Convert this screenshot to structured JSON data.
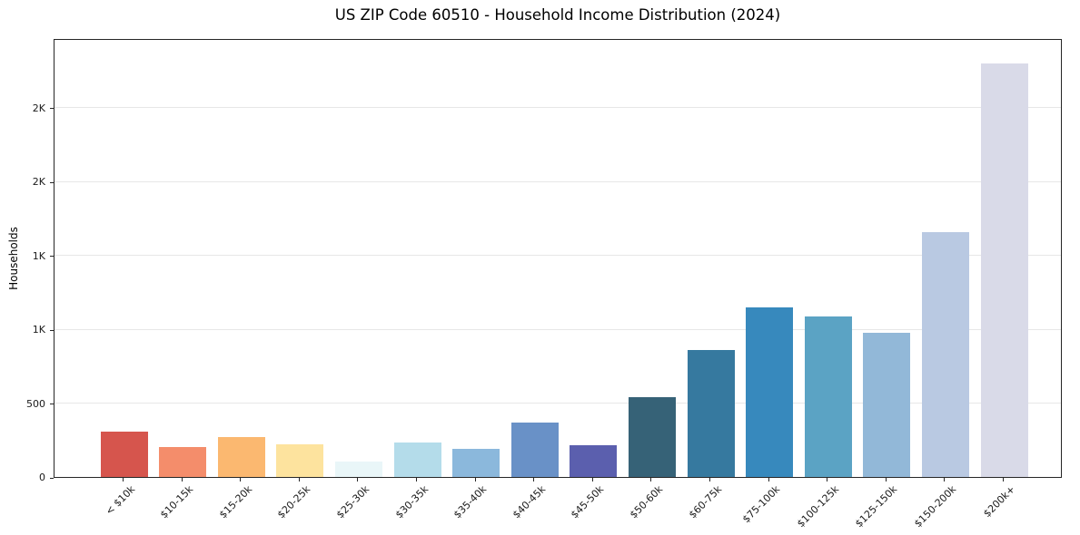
{
  "chart_data": {
    "type": "bar",
    "title": "US ZIP Code 60510 - Household Income Distribution (2024)",
    "xlabel": "",
    "ylabel": "Households",
    "categories": [
      "< $10k",
      "$10-15k",
      "$15-20k",
      "$20-25k",
      "$25-30k",
      "$30-35k",
      "$35-40k",
      "$40-45k",
      "$45-50k",
      "$50-60k",
      "$60-75k",
      "$75-100k",
      "$100-125k",
      "$125-150k",
      "$150-200k",
      "$200k+"
    ],
    "values": [
      310,
      200,
      270,
      220,
      105,
      235,
      190,
      370,
      215,
      540,
      860,
      1150,
      1085,
      975,
      1660,
      2800
    ],
    "bar_colors": [
      "#d6554d",
      "#f48d6b",
      "#fbb870",
      "#fde39e",
      "#e9f6f8",
      "#b4dcea",
      "#8bb8dc",
      "#6991c7",
      "#5b5fae",
      "#366277",
      "#36799f",
      "#3789bd",
      "#5ba3c4",
      "#92b8d8",
      "#b9c9e2",
      "#d9dae8"
    ],
    "ylim": [
      0,
      2970
    ],
    "yticks": [
      {
        "value": 0,
        "label": "0"
      },
      {
        "value": 500,
        "label": "500"
      },
      {
        "value": 1000,
        "label": "1K"
      },
      {
        "value": 1500,
        "label": "1K"
      },
      {
        "value": 2000,
        "label": "2K"
      },
      {
        "value": 2500,
        "label": "2K"
      }
    ],
    "grid": "horizontal",
    "legend": "none",
    "colors": {
      "grid": "#e7e7e7",
      "spine": "#262626",
      "background": "#ffffff"
    }
  }
}
